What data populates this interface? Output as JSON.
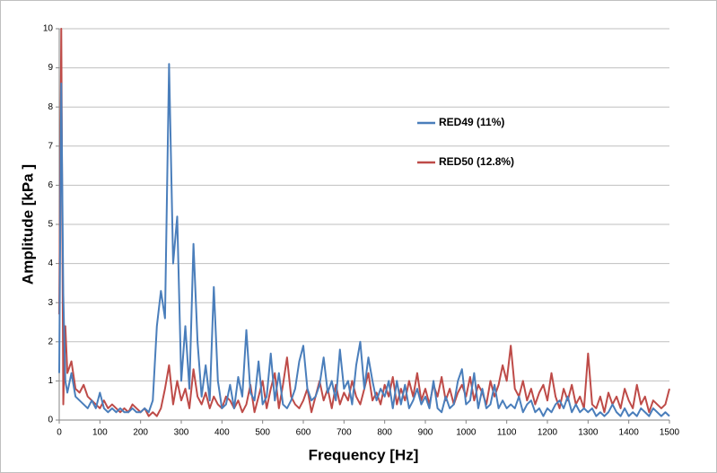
{
  "chart_data": {
    "type": "line",
    "x_label": "Frequency [Hz]",
    "y_label": "Amplitude [kPa ]",
    "x": [
      0,
      5,
      10,
      15,
      20,
      30,
      40,
      50,
      60,
      70,
      80,
      90,
      100,
      110,
      120,
      130,
      140,
      150,
      160,
      170,
      180,
      190,
      200,
      210,
      220,
      230,
      240,
      250,
      260,
      270,
      280,
      290,
      300,
      310,
      320,
      330,
      340,
      350,
      360,
      370,
      380,
      390,
      400,
      410,
      420,
      430,
      440,
      450,
      460,
      470,
      480,
      490,
      500,
      510,
      520,
      530,
      540,
      550,
      560,
      570,
      580,
      590,
      600,
      610,
      620,
      630,
      640,
      650,
      660,
      670,
      680,
      690,
      700,
      710,
      720,
      730,
      740,
      750,
      760,
      770,
      780,
      790,
      800,
      810,
      820,
      830,
      840,
      850,
      860,
      870,
      880,
      890,
      900,
      910,
      920,
      930,
      940,
      950,
      960,
      970,
      980,
      990,
      1000,
      1010,
      1020,
      1030,
      1040,
      1050,
      1060,
      1070,
      1080,
      1090,
      1100,
      1110,
      1120,
      1130,
      1140,
      1150,
      1160,
      1170,
      1180,
      1190,
      1200,
      1210,
      1220,
      1230,
      1240,
      1250,
      1260,
      1270,
      1280,
      1290,
      1300,
      1310,
      1320,
      1330,
      1340,
      1350,
      1360,
      1370,
      1380,
      1390,
      1400,
      1410,
      1420,
      1430,
      1440,
      1450,
      1460,
      1470,
      1480,
      1490,
      1500
    ],
    "series": [
      {
        "name": "RED49 (11%)",
        "color": "#4a7ebb",
        "values": [
          1.2,
          8.6,
          3.2,
          1.0,
          0.7,
          1.2,
          0.6,
          0.5,
          0.4,
          0.3,
          0.5,
          0.3,
          0.7,
          0.3,
          0.2,
          0.3,
          0.2,
          0.3,
          0.2,
          0.2,
          0.3,
          0.2,
          0.2,
          0.3,
          0.2,
          0.5,
          2.4,
          3.3,
          2.6,
          9.1,
          4.0,
          5.2,
          1.0,
          2.4,
          0.8,
          4.5,
          2.0,
          0.6,
          1.4,
          0.5,
          3.4,
          1.0,
          0.3,
          0.4,
          0.9,
          0.3,
          1.1,
          0.6,
          2.3,
          0.7,
          0.5,
          1.5,
          0.4,
          0.6,
          1.7,
          0.5,
          1.2,
          0.4,
          0.3,
          0.5,
          0.8,
          1.5,
          1.9,
          0.8,
          0.5,
          0.6,
          0.9,
          1.6,
          0.7,
          1.0,
          0.5,
          1.8,
          0.8,
          1.0,
          0.4,
          1.4,
          2.0,
          0.8,
          1.6,
          1.0,
          0.5,
          0.8,
          0.6,
          1.0,
          0.3,
          1.0,
          0.4,
          0.9,
          0.3,
          0.5,
          0.8,
          0.4,
          0.6,
          0.3,
          1.0,
          0.3,
          0.2,
          0.6,
          0.3,
          0.4,
          1.0,
          1.3,
          0.4,
          0.5,
          1.2,
          0.3,
          0.8,
          0.3,
          0.4,
          0.9,
          0.3,
          0.5,
          0.3,
          0.4,
          0.3,
          0.6,
          0.2,
          0.4,
          0.5,
          0.2,
          0.3,
          0.1,
          0.3,
          0.2,
          0.4,
          0.5,
          0.3,
          0.6,
          0.2,
          0.4,
          0.2,
          0.3,
          0.2,
          0.3,
          0.1,
          0.2,
          0.1,
          0.2,
          0.4,
          0.2,
          0.1,
          0.3,
          0.1,
          0.2,
          0.1,
          0.3,
          0.2,
          0.1,
          0.3,
          0.2,
          0.1,
          0.2,
          0.1
        ]
      },
      {
        "name": "RED50 (12.8%)",
        "color": "#be4b48",
        "values": [
          2.7,
          10,
          0.4,
          2.4,
          1.2,
          1.5,
          0.8,
          0.7,
          0.9,
          0.6,
          0.5,
          0.4,
          0.3,
          0.5,
          0.3,
          0.4,
          0.3,
          0.2,
          0.3,
          0.2,
          0.4,
          0.3,
          0.2,
          0.3,
          0.1,
          0.2,
          0.1,
          0.3,
          0.8,
          1.4,
          0.4,
          1.0,
          0.5,
          0.8,
          0.3,
          1.3,
          0.6,
          0.4,
          0.7,
          0.3,
          0.6,
          0.4,
          0.3,
          0.6,
          0.5,
          0.3,
          0.5,
          0.2,
          0.4,
          0.9,
          0.2,
          0.6,
          1.0,
          0.3,
          0.8,
          1.2,
          0.3,
          0.9,
          1.6,
          0.6,
          0.4,
          0.3,
          0.5,
          0.8,
          0.2,
          0.6,
          1.0,
          0.5,
          0.8,
          0.3,
          0.9,
          0.4,
          0.7,
          0.5,
          1.0,
          0.6,
          0.4,
          0.8,
          1.2,
          0.5,
          0.7,
          0.4,
          0.9,
          0.6,
          1.1,
          0.4,
          0.8,
          0.5,
          1.0,
          0.6,
          1.2,
          0.5,
          0.8,
          0.4,
          0.9,
          0.6,
          1.1,
          0.5,
          0.8,
          0.4,
          0.7,
          0.9,
          0.6,
          1.1,
          0.5,
          0.9,
          0.7,
          0.4,
          1.0,
          0.6,
          0.9,
          1.4,
          1.0,
          1.9,
          0.8,
          0.6,
          1.0,
          0.5,
          0.8,
          0.4,
          0.7,
          0.9,
          0.5,
          1.2,
          0.6,
          0.3,
          0.8,
          0.5,
          0.9,
          0.4,
          0.6,
          0.3,
          1.7,
          0.4,
          0.3,
          0.6,
          0.2,
          0.7,
          0.4,
          0.6,
          0.3,
          0.8,
          0.5,
          0.3,
          0.9,
          0.4,
          0.6,
          0.2,
          0.5,
          0.4,
          0.3,
          0.4,
          0.8
        ]
      }
    ],
    "xlim": [
      0,
      1500
    ],
    "xticks": [
      0,
      100,
      200,
      300,
      400,
      500,
      600,
      700,
      800,
      900,
      1000,
      1100,
      1200,
      1300,
      1400,
      1500
    ],
    "ylim": [
      0,
      10
    ],
    "yticks": [
      0,
      1,
      2,
      3,
      4,
      5,
      6,
      7,
      8,
      9,
      10
    ],
    "grid": true
  }
}
